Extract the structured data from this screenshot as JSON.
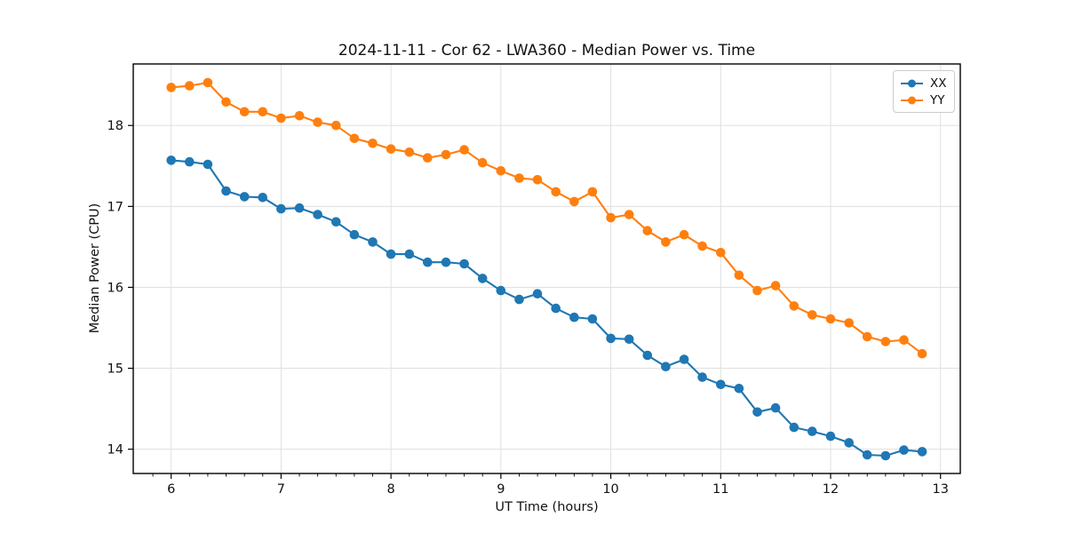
{
  "chart_data": {
    "type": "line",
    "title": "2024-11-11 - Cor 62 - LWA360 - Median Power vs. Time",
    "xlabel": "UT Time (hours)",
    "ylabel": "Median Power (CPU)",
    "xlim": [
      5.655,
      13.18
    ],
    "ylim": [
      13.7,
      18.76
    ],
    "x_ticks": [
      6,
      7,
      8,
      9,
      10,
      11,
      12,
      13
    ],
    "y_ticks": [
      14,
      15,
      16,
      17,
      18
    ],
    "x_minor_step": 0.1667,
    "grid": true,
    "grid_color": "#e0e0e0",
    "legend_position": "upper right",
    "x": [
      6.0,
      6.167,
      6.333,
      6.5,
      6.667,
      6.833,
      7.0,
      7.167,
      7.333,
      7.5,
      7.667,
      7.833,
      8.0,
      8.167,
      8.333,
      8.5,
      8.667,
      8.833,
      9.0,
      9.167,
      9.333,
      9.5,
      9.667,
      9.833,
      10.0,
      10.167,
      10.333,
      10.5,
      10.667,
      10.833,
      11.0,
      11.167,
      11.333,
      11.5,
      11.667,
      11.833,
      12.0,
      12.167,
      12.333,
      12.5,
      12.667,
      12.833
    ],
    "series": [
      {
        "name": "XX",
        "color": "#1f77b4",
        "values": [
          17.57,
          17.55,
          17.52,
          17.19,
          17.12,
          17.11,
          16.97,
          16.98,
          16.9,
          16.81,
          16.65,
          16.56,
          16.41,
          16.41,
          16.31,
          16.31,
          16.29,
          16.11,
          15.96,
          15.85,
          15.92,
          15.74,
          15.63,
          15.61,
          15.37,
          15.36,
          15.16,
          15.02,
          15.11,
          14.89,
          14.8,
          14.75,
          14.46,
          14.51,
          14.27,
          14.22,
          14.16,
          14.08,
          13.93,
          13.92,
          13.99,
          13.97
        ]
      },
      {
        "name": "YY",
        "color": "#ff7f0e",
        "values": [
          18.47,
          18.49,
          18.53,
          18.29,
          18.17,
          18.17,
          18.09,
          18.12,
          18.04,
          18.0,
          17.84,
          17.78,
          17.71,
          17.67,
          17.6,
          17.64,
          17.7,
          17.54,
          17.44,
          17.35,
          17.33,
          17.18,
          17.06,
          17.18,
          16.86,
          16.9,
          16.7,
          16.56,
          16.65,
          16.51,
          16.43,
          16.15,
          15.96,
          16.02,
          15.77,
          15.66,
          15.61,
          15.56,
          15.39,
          15.33,
          15.35,
          15.18
        ]
      }
    ]
  }
}
